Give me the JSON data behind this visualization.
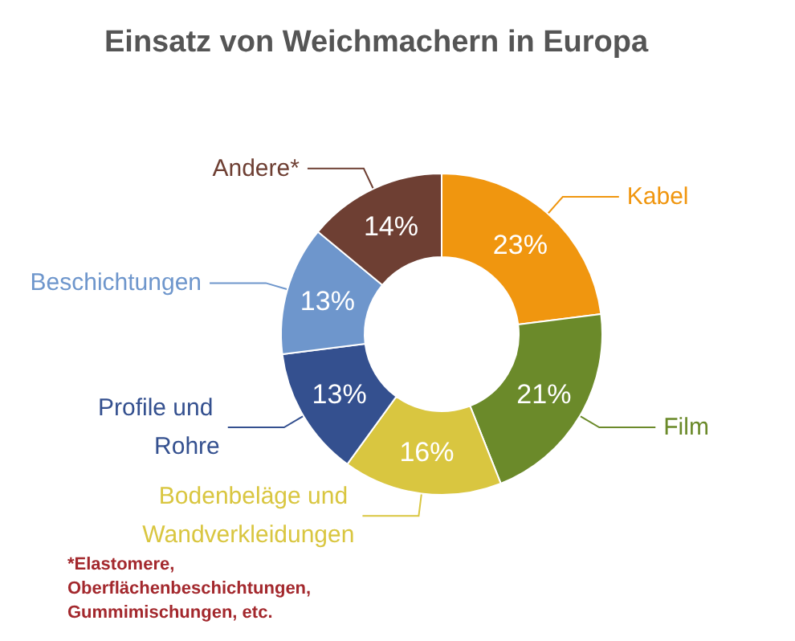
{
  "chart_data": {
    "type": "donut",
    "title": "Einsatz von Weichmachern in Europa",
    "categories": [
      "Kabel",
      "Film",
      "Bodenbeläge und Wandverkleidungen",
      "Profile und Rohre",
      "Beschichtungen",
      "Andere*"
    ],
    "values": [
      23,
      21,
      16,
      13,
      13,
      14
    ],
    "colors": [
      "#f0960f",
      "#6b8a2a",
      "#d9c640",
      "#34508f",
      "#6e96cc",
      "#6e3f33"
    ],
    "value_labels": [
      "23%",
      "21%",
      "16%",
      "13%",
      "13%",
      "14%"
    ],
    "annotations": [
      "*Elastomere,\nOberflächenbeschichtungen,\nGummimischungen, etc."
    ]
  }
}
